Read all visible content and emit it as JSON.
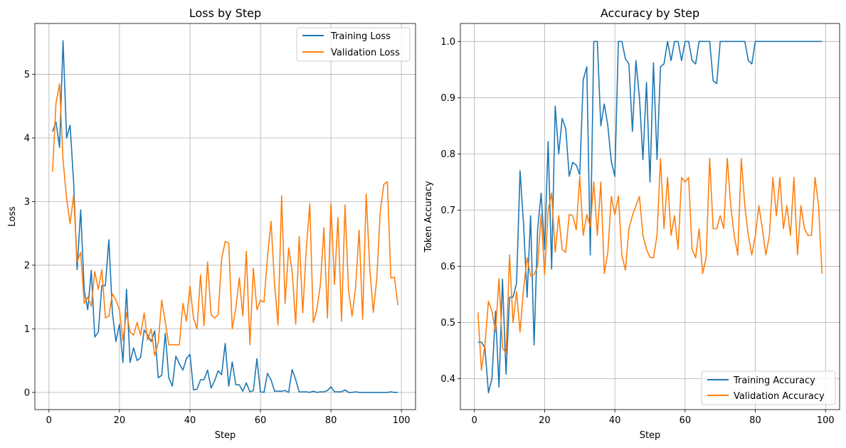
{
  "chart_data": [
    {
      "type": "line",
      "title": "Loss by Step",
      "xlabel": "Step",
      "ylabel": "Loss",
      "xlim": [
        -4,
        104
      ],
      "ylim": [
        -0.27,
        5.8
      ],
      "xticks": [
        0,
        20,
        40,
        60,
        80,
        100
      ],
      "yticks": [
        0,
        1,
        2,
        3,
        4,
        5
      ],
      "grid": true,
      "legend": "top-right",
      "series": [
        {
          "name": "Training Loss",
          "color": "#1f77b4",
          "x": [
            1,
            2,
            3,
            4,
            5,
            6,
            7,
            8,
            9,
            10,
            11,
            12,
            13,
            14,
            15,
            16,
            17,
            18,
            19,
            20,
            21,
            22,
            23,
            24,
            25,
            26,
            27,
            28,
            29,
            30,
            31,
            32,
            33,
            34,
            35,
            36,
            37,
            38,
            39,
            40,
            41,
            42,
            43,
            44,
            45,
            46,
            47,
            48,
            49,
            50,
            51,
            52,
            53,
            54,
            55,
            56,
            57,
            58,
            59,
            60,
            61,
            62,
            63,
            64,
            65,
            66,
            67,
            68,
            69,
            70,
            71,
            72,
            73,
            74,
            75,
            76,
            77,
            78,
            79,
            80,
            81,
            82,
            83,
            84,
            85,
            86,
            87,
            88,
            89,
            90,
            91,
            92,
            93,
            94,
            95,
            96,
            97,
            98,
            99
          ],
          "y": [
            4.1,
            4.25,
            3.85,
            5.53,
            4.0,
            4.2,
            3.3,
            1.93,
            2.87,
            1.6,
            1.3,
            1.92,
            0.87,
            0.95,
            1.68,
            1.68,
            2.4,
            1.25,
            0.8,
            1.07,
            0.47,
            1.62,
            0.47,
            0.7,
            0.5,
            0.55,
            0.98,
            0.9,
            0.8,
            0.97,
            0.23,
            0.27,
            0.93,
            0.23,
            0.1,
            0.57,
            0.45,
            0.35,
            0.53,
            0.6,
            0.04,
            0.05,
            0.2,
            0.2,
            0.35,
            0.07,
            0.18,
            0.34,
            0.28,
            0.77,
            0.1,
            0.48,
            0.12,
            0.12,
            0.02,
            0.15,
            0.01,
            0.03,
            0.53,
            0.01,
            0.0,
            0.3,
            0.2,
            0.02,
            0.02,
            0.02,
            0.03,
            0.0,
            0.36,
            0.2,
            0.01,
            0.01,
            0.01,
            0.0,
            0.02,
            0.0,
            0.01,
            0.01,
            0.03,
            0.09,
            0.01,
            0.01,
            0.01,
            0.04,
            0.0,
            0.0,
            0.01,
            0.0,
            0.0,
            0.0,
            0.0,
            0.0,
            0.0,
            0.0,
            0.0,
            0.0,
            0.01,
            0.0,
            0.0
          ]
        },
        {
          "name": "Validation Loss",
          "color": "#ff7f0e",
          "x": [
            1,
            2,
            3,
            4,
            5,
            6,
            7,
            8,
            9,
            10,
            11,
            12,
            13,
            14,
            15,
            16,
            17,
            18,
            19,
            20,
            21,
            22,
            23,
            24,
            25,
            26,
            27,
            28,
            29,
            30,
            31,
            32,
            33,
            34,
            35,
            36,
            37,
            38,
            39,
            40,
            41,
            42,
            43,
            44,
            45,
            46,
            47,
            48,
            49,
            50,
            51,
            52,
            53,
            54,
            55,
            56,
            57,
            58,
            59,
            60,
            61,
            62,
            63,
            64,
            65,
            66,
            67,
            68,
            69,
            70,
            71,
            72,
            73,
            74,
            75,
            76,
            77,
            78,
            79,
            80,
            81,
            82,
            83,
            84,
            85,
            86,
            87,
            88,
            89,
            90,
            91,
            92,
            93,
            94,
            95,
            96,
            97,
            98,
            99
          ],
          "y": [
            3.47,
            4.55,
            4.85,
            3.65,
            3.05,
            2.65,
            3.1,
            2.05,
            2.2,
            1.4,
            1.5,
            1.35,
            1.9,
            1.62,
            1.93,
            1.17,
            1.2,
            1.55,
            1.45,
            1.3,
            0.82,
            1.25,
            0.95,
            0.9,
            1.1,
            0.9,
            1.25,
            0.82,
            1.0,
            0.58,
            0.78,
            1.45,
            1.1,
            0.75,
            0.75,
            0.75,
            0.75,
            1.4,
            1.12,
            1.67,
            1.17,
            1.0,
            1.85,
            1.05,
            2.05,
            1.22,
            1.17,
            1.22,
            2.1,
            2.37,
            2.35,
            1.0,
            1.32,
            1.8,
            1.2,
            2.22,
            0.75,
            1.95,
            1.3,
            1.45,
            1.42,
            2.12,
            2.69,
            1.7,
            1.06,
            3.09,
            1.4,
            2.27,
            1.9,
            1.07,
            2.45,
            1.25,
            2.24,
            2.97,
            1.1,
            1.3,
            1.7,
            2.59,
            1.17,
            2.97,
            1.7,
            2.75,
            1.12,
            2.95,
            1.6,
            1.2,
            1.65,
            2.55,
            1.15,
            3.12,
            1.97,
            1.26,
            1.78,
            2.85,
            3.27,
            3.31,
            1.8,
            1.81,
            1.37
          ]
        }
      ]
    },
    {
      "type": "line",
      "title": "Accuracy by Step",
      "xlabel": "Step",
      "ylabel": "Token Accuracy",
      "xlim": [
        -4,
        104
      ],
      "ylim": [
        0.345,
        1.032
      ],
      "xticks": [
        0,
        20,
        40,
        60,
        80,
        100
      ],
      "yticks": [
        0.4,
        0.5,
        0.6,
        0.7,
        0.8,
        0.9,
        1.0
      ],
      "grid": true,
      "legend": "bottom-right",
      "series": [
        {
          "name": "Training Accuracy",
          "color": "#1f77b4",
          "x": [
            1,
            2,
            3,
            4,
            5,
            6,
            7,
            8,
            9,
            10,
            11,
            12,
            13,
            14,
            15,
            16,
            17,
            18,
            19,
            20,
            21,
            22,
            23,
            24,
            25,
            26,
            27,
            28,
            29,
            30,
            31,
            32,
            33,
            34,
            35,
            36,
            37,
            38,
            39,
            40,
            41,
            42,
            43,
            44,
            45,
            46,
            47,
            48,
            49,
            50,
            51,
            52,
            53,
            54,
            55,
            56,
            57,
            58,
            59,
            60,
            61,
            62,
            63,
            64,
            65,
            66,
            67,
            68,
            69,
            70,
            71,
            72,
            73,
            74,
            75,
            76,
            77,
            78,
            79,
            80,
            81,
            82,
            83,
            84,
            85,
            86,
            87,
            88,
            89,
            90,
            91,
            92,
            93,
            94,
            95,
            96,
            97,
            98,
            99
          ],
          "y": [
            0.465,
            0.465,
            0.455,
            0.375,
            0.4,
            0.52,
            0.385,
            0.577,
            0.408,
            0.545,
            0.545,
            0.57,
            0.77,
            0.675,
            0.545,
            0.69,
            0.46,
            0.665,
            0.73,
            0.63,
            0.822,
            0.595,
            0.885,
            0.8,
            0.863,
            0.845,
            0.76,
            0.785,
            0.78,
            0.763,
            0.932,
            0.955,
            0.62,
            1.0,
            1.0,
            0.85,
            0.889,
            0.85,
            0.786,
            0.76,
            1.0,
            1.0,
            0.969,
            0.96,
            0.84,
            0.966,
            0.9,
            0.79,
            0.927,
            0.75,
            0.962,
            0.79,
            0.955,
            0.96,
            1.0,
            0.966,
            1.0,
            1.0,
            0.966,
            1.0,
            1.0,
            0.966,
            0.96,
            1.0,
            1.0,
            1.0,
            1.0,
            0.93,
            0.925,
            1.0,
            1.0,
            1.0,
            1.0,
            1.0,
            1.0,
            1.0,
            1.0,
            0.966,
            0.96,
            1.0,
            1.0,
            1.0,
            1.0,
            1.0,
            1.0,
            1.0,
            1.0,
            1.0,
            1.0,
            1.0,
            1.0,
            1.0,
            1.0,
            1.0,
            1.0,
            1.0,
            1.0,
            1.0,
            1.0
          ]
        },
        {
          "name": "Validation Accuracy",
          "color": "#ff7f0e",
          "x": [
            1,
            2,
            3,
            4,
            5,
            6,
            7,
            8,
            9,
            10,
            11,
            12,
            13,
            14,
            15,
            16,
            17,
            18,
            19,
            20,
            21,
            22,
            23,
            24,
            25,
            26,
            27,
            28,
            29,
            30,
            31,
            32,
            33,
            34,
            35,
            36,
            37,
            38,
            39,
            40,
            41,
            42,
            43,
            44,
            45,
            46,
            47,
            48,
            49,
            50,
            51,
            52,
            53,
            54,
            55,
            56,
            57,
            58,
            59,
            60,
            61,
            62,
            63,
            64,
            65,
            66,
            67,
            68,
            69,
            70,
            71,
            72,
            73,
            74,
            75,
            76,
            77,
            78,
            79,
            80,
            81,
            82,
            83,
            84,
            85,
            86,
            87,
            88,
            89,
            90,
            91,
            92,
            93,
            94,
            95,
            96,
            97,
            98,
            99
          ],
          "y": [
            0.518,
            0.415,
            0.46,
            0.538,
            0.52,
            0.483,
            0.578,
            0.455,
            0.445,
            0.62,
            0.5,
            0.555,
            0.483,
            0.56,
            0.615,
            0.583,
            0.585,
            0.6,
            0.692,
            0.585,
            0.7,
            0.73,
            0.625,
            0.69,
            0.63,
            0.625,
            0.692,
            0.69,
            0.665,
            0.76,
            0.655,
            0.692,
            0.67,
            0.75,
            0.655,
            0.75,
            0.587,
            0.625,
            0.724,
            0.692,
            0.725,
            0.62,
            0.593,
            0.667,
            0.69,
            0.708,
            0.724,
            0.655,
            0.63,
            0.616,
            0.615,
            0.655,
            0.792,
            0.667,
            0.758,
            0.655,
            0.69,
            0.63,
            0.758,
            0.75,
            0.758,
            0.63,
            0.615,
            0.667,
            0.587,
            0.616,
            0.792,
            0.667,
            0.667,
            0.69,
            0.667,
            0.792,
            0.708,
            0.655,
            0.62,
            0.792,
            0.708,
            0.655,
            0.62,
            0.655,
            0.708,
            0.667,
            0.62,
            0.655,
            0.758,
            0.69,
            0.758,
            0.667,
            0.708,
            0.655,
            0.758,
            0.62,
            0.708,
            0.667,
            0.655,
            0.655,
            0.758,
            0.708,
            0.587
          ]
        }
      ]
    }
  ]
}
